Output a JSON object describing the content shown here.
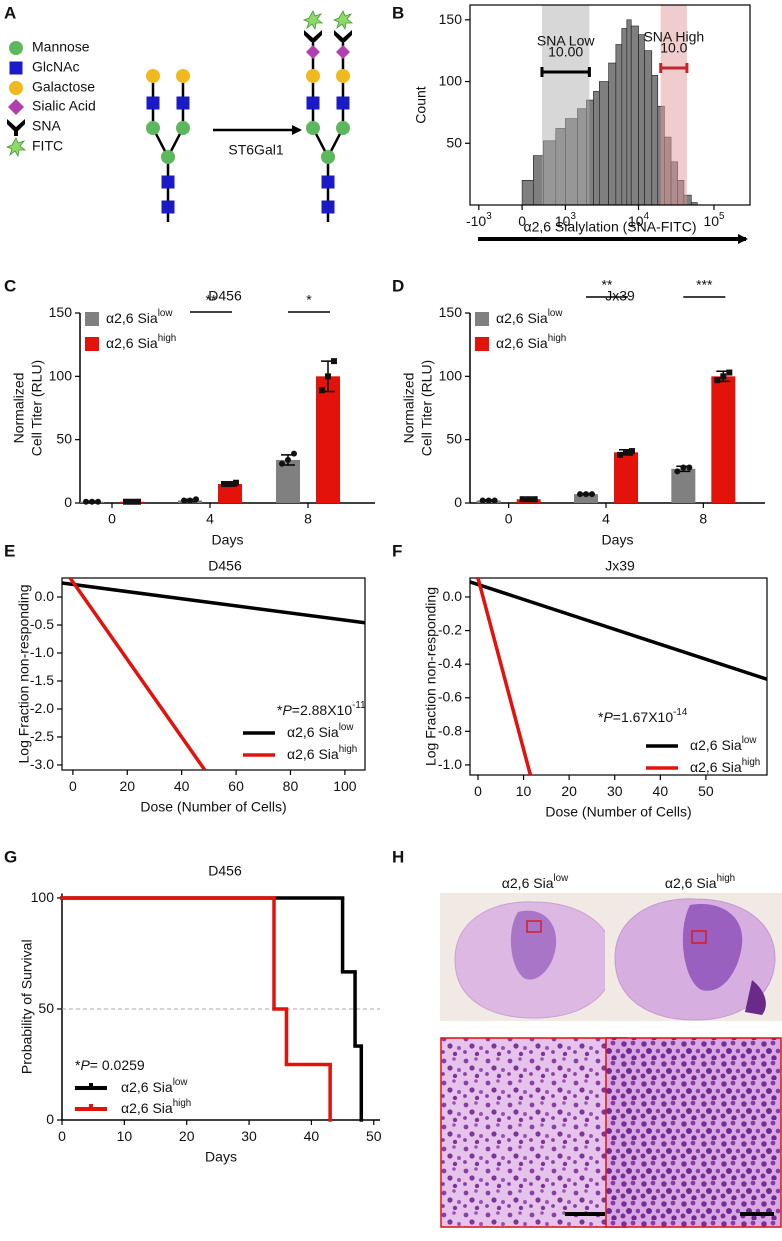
{
  "panel_labels": [
    "A",
    "B",
    "C",
    "D",
    "E",
    "F",
    "G",
    "H"
  ],
  "diagram": {
    "legend": [
      "Mannose",
      "GlcNAc",
      "Galactose",
      "Sialic Acid",
      "SNA",
      "FITC"
    ],
    "enzyme": "ST6Gal1"
  },
  "images": {
    "titles": [
      {
        "text": "α2,6 Sia",
        "superscript": "low"
      },
      {
        "text": "α2,6 Sia",
        "superscript": "high"
      }
    ]
  },
  "chart_data": [
    {
      "type": "histogram",
      "ylabel": "Count",
      "xlabel": "α2,6 Sialylation (SNA-FITC)",
      "xscale": "arcsinh",
      "color": "#7f7f7f",
      "bins": [
        0,
        200,
        400,
        700,
        1000,
        1500,
        2000,
        2500,
        3000,
        4000,
        5000,
        6000,
        7000,
        8000,
        10000,
        12000,
        15000,
        18000,
        22000,
        27000,
        33000,
        40000,
        50000,
        60000
      ],
      "counts": [
        20,
        40,
        52,
        62,
        70,
        78,
        85,
        92,
        100,
        115,
        130,
        143,
        150,
        145,
        138,
        125,
        105,
        80,
        55,
        35,
        20,
        8,
        2
      ],
      "xlim": [
        -1350,
        300000
      ],
      "ylim": [
        0,
        162
      ],
      "xticks": [
        {
          "value": -1000,
          "label": "-10",
          "superscript": "3"
        },
        0,
        {
          "value": 1000,
          "label": "10",
          "superscript": "3"
        },
        {
          "value": 10000,
          "label": "10",
          "superscript": "4"
        },
        {
          "value": 100000,
          "label": "10",
          "superscript": "5"
        }
      ],
      "yticks": [
        50,
        100,
        150
      ],
      "gates": [
        {
          "name": "SNA Low",
          "value": 10,
          "value_label": "10.00",
          "range": [
            370,
            2200
          ],
          "color": "#000000"
        },
        {
          "name": "SNA High",
          "value": 10,
          "value_label": "10.0",
          "range": [
            19700,
            43800
          ],
          "color": "#c0262b"
        }
      ]
    },
    {
      "type": "bar",
      "title": "D456",
      "ylabel": [
        "Normalized",
        "Cell Titer (RLU)"
      ],
      "xlabel": "Days",
      "categories": [
        "0",
        "4",
        "8"
      ],
      "series": [
        {
          "name": "α2,6 Sia",
          "name_superscript": "low",
          "color": "#808080",
          "values": [
            1,
            2,
            34
          ],
          "errors": [
            0.5,
            1,
            4
          ],
          "points": [
            [
              1,
              1,
              1
            ],
            [
              2,
              2,
              3
            ],
            [
              31,
              34,
              39
            ]
          ]
        },
        {
          "name": "α2,6 Sia",
          "name_superscript": "high",
          "color": "#e3120b",
          "values": [
            1,
            15,
            100
          ],
          "errors": [
            0.5,
            1.5,
            12
          ],
          "points": [
            [
              1,
              1,
              1
            ],
            [
              15,
              15,
              16
            ],
            [
              89,
              100,
              112
            ]
          ]
        }
      ],
      "ylim": [
        0,
        150
      ],
      "yticks": [
        0,
        50,
        100,
        150
      ],
      "significance": [
        null,
        "**",
        "*"
      ]
    },
    {
      "type": "bar",
      "title": "Jx39",
      "ylabel": [
        "Normalized",
        "Cell Titer (RLU)"
      ],
      "xlabel": "Days",
      "categories": [
        "0",
        "4",
        "8"
      ],
      "series": [
        {
          "name": "α2,6 Sia",
          "name_superscript": "low",
          "color": "#808080",
          "values": [
            2,
            7,
            27
          ],
          "errors": [
            0.5,
            0.5,
            2
          ],
          "points": [
            [
              2,
              2,
              2
            ],
            [
              7,
              7,
              7
            ],
            [
              25,
              28,
              28
            ]
          ]
        },
        {
          "name": "α2,6 Sia",
          "name_superscript": "high",
          "color": "#e3120b",
          "values": [
            3,
            40,
            100
          ],
          "errors": [
            0.5,
            2,
            4
          ],
          "points": [
            [
              3,
              3,
              3
            ],
            [
              38,
              40,
              41
            ],
            [
              97,
              100,
              103
            ]
          ]
        }
      ],
      "ylim": [
        0,
        150
      ],
      "yticks": [
        0,
        50,
        100,
        150
      ],
      "significance": [
        null,
        "**",
        "***"
      ]
    },
    {
      "type": "line",
      "title": "D456",
      "ylabel": "Log Fraction non-responding",
      "xlabel": "Dose (Number of Cells)",
      "annotation": {
        "prefix": "*",
        "italic": "P",
        "text": "=2.88X10",
        "superscript": "-11"
      },
      "series": [
        {
          "name": "α2,6 Sia",
          "name_superscript": "low",
          "color": "#000000",
          "x": [
            -4,
            107.4
          ],
          "values": [
            0.25,
            -0.46
          ]
        },
        {
          "name": "α2,6 Sia",
          "name_superscript": "high",
          "color": "#e3120b",
          "x": [
            -1,
            48.5
          ],
          "values": [
            0.34,
            -3.09
          ]
        }
      ],
      "xlim": [
        -4,
        107.4
      ],
      "ylim": [
        -3.09,
        0.34
      ],
      "xticks": [
        0,
        20,
        40,
        60,
        80,
        100
      ],
      "yticks": [
        {
          "value": 0,
          "label": "0.0"
        },
        -0.5,
        {
          "value": -1,
          "label": "-1.0"
        },
        -1.5,
        {
          "value": -2,
          "label": "-2.0"
        },
        -2.5,
        {
          "value": -3,
          "label": "-3.0"
        }
      ]
    },
    {
      "type": "line",
      "title": "Jx39",
      "ylabel": "Log Fraction non-responding",
      "xlabel": "Dose (Number of Cells)",
      "annotation": {
        "prefix": "*",
        "italic": "P",
        "text": "=1.67X10",
        "superscript": "-14"
      },
      "series": [
        {
          "name": "α2,6 Sia",
          "name_superscript": "low",
          "color": "#000000",
          "x": [
            -1.75,
            63.4
          ],
          "values": [
            0.09,
            -0.49
          ]
        },
        {
          "name": "α2,6 Sia",
          "name_superscript": "high",
          "color": "#e3120b",
          "x": [
            0,
            11.5
          ],
          "values": [
            0.113,
            -1.06
          ]
        }
      ],
      "xlim": [
        -1.75,
        63.4
      ],
      "ylim": [
        -1.06,
        0.113
      ],
      "xticks": [
        0,
        10,
        20,
        30,
        40,
        50
      ],
      "yticks": [
        {
          "value": 0,
          "label": "0.0"
        },
        -0.2,
        -0.4,
        -0.6,
        -0.8,
        {
          "value": -1,
          "label": "-1.0"
        }
      ]
    },
    {
      "type": "step",
      "title": "D456",
      "ylabel": "Probability of Survival",
      "xlabel": "Days",
      "annotation": {
        "prefix": "*",
        "italic": "P",
        "text": "= 0.0259"
      },
      "series": [
        {
          "name": "α2,6 Sia",
          "name_superscript": "low",
          "color": "#000000",
          "x": [
            0,
            45,
            47,
            48
          ],
          "values": [
            100,
            66.7,
            33.3,
            0
          ]
        },
        {
          "name": "α2,6 Sia",
          "name_superscript": "high",
          "color": "#e3120b",
          "x": [
            0,
            34,
            36,
            43
          ],
          "values": [
            100,
            50,
            25,
            0
          ]
        }
      ],
      "hline": 50,
      "xlim": [
        0,
        51
      ],
      "ylim": [
        0,
        102
      ],
      "xticks": [
        0,
        10,
        20,
        30,
        40,
        50
      ],
      "yticks": [
        0,
        50,
        100
      ]
    }
  ]
}
